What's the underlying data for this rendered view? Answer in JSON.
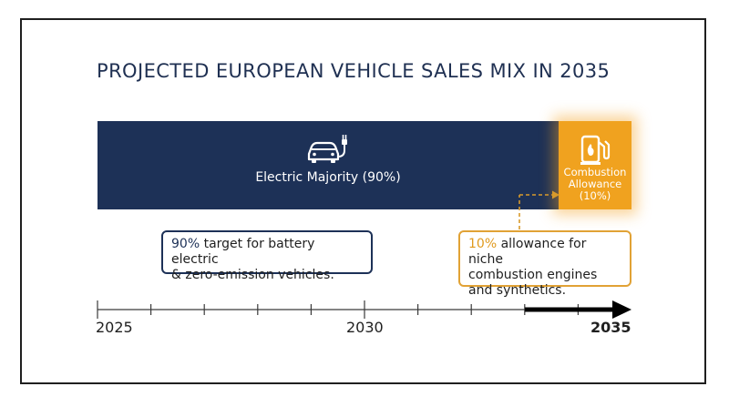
{
  "chart_data": {
    "type": "bar",
    "orientation": "horizontal-stacked",
    "title": "PROJECTED EUROPEAN VEHICLE SALES MIX IN 2035",
    "series": [
      {
        "name": "Electric Majority (90%)",
        "value": 90,
        "color": "#1d3157",
        "icon": "electric-car-icon"
      },
      {
        "name": "Combustion Allowance (10%)",
        "value": 10,
        "color": "#f0a21f",
        "icon": "fuel-pump-icon"
      }
    ],
    "annotations": [
      {
        "highlight": "90%",
        "text": " target for battery electric & zero-emission vehicles.",
        "color": "#1d3157"
      },
      {
        "highlight": "10%",
        "text": " allowance for niche combustion engines and synthetics.",
        "color": "#e09a1e"
      }
    ],
    "timeline": {
      "range": [
        2025,
        2035
      ],
      "labels": [
        "2025",
        "2030",
        "2035"
      ],
      "emphasized": "2035"
    }
  },
  "labels": {
    "combustion_lines": [
      "Combustion",
      "Allowance",
      "(10%)"
    ],
    "electric_box_lines": [
      "target for battery electric",
      "& zero-emission vehicles."
    ],
    "combustion_box_lines": [
      "allowance for niche",
      "combustion engines",
      "and synthetics."
    ]
  }
}
